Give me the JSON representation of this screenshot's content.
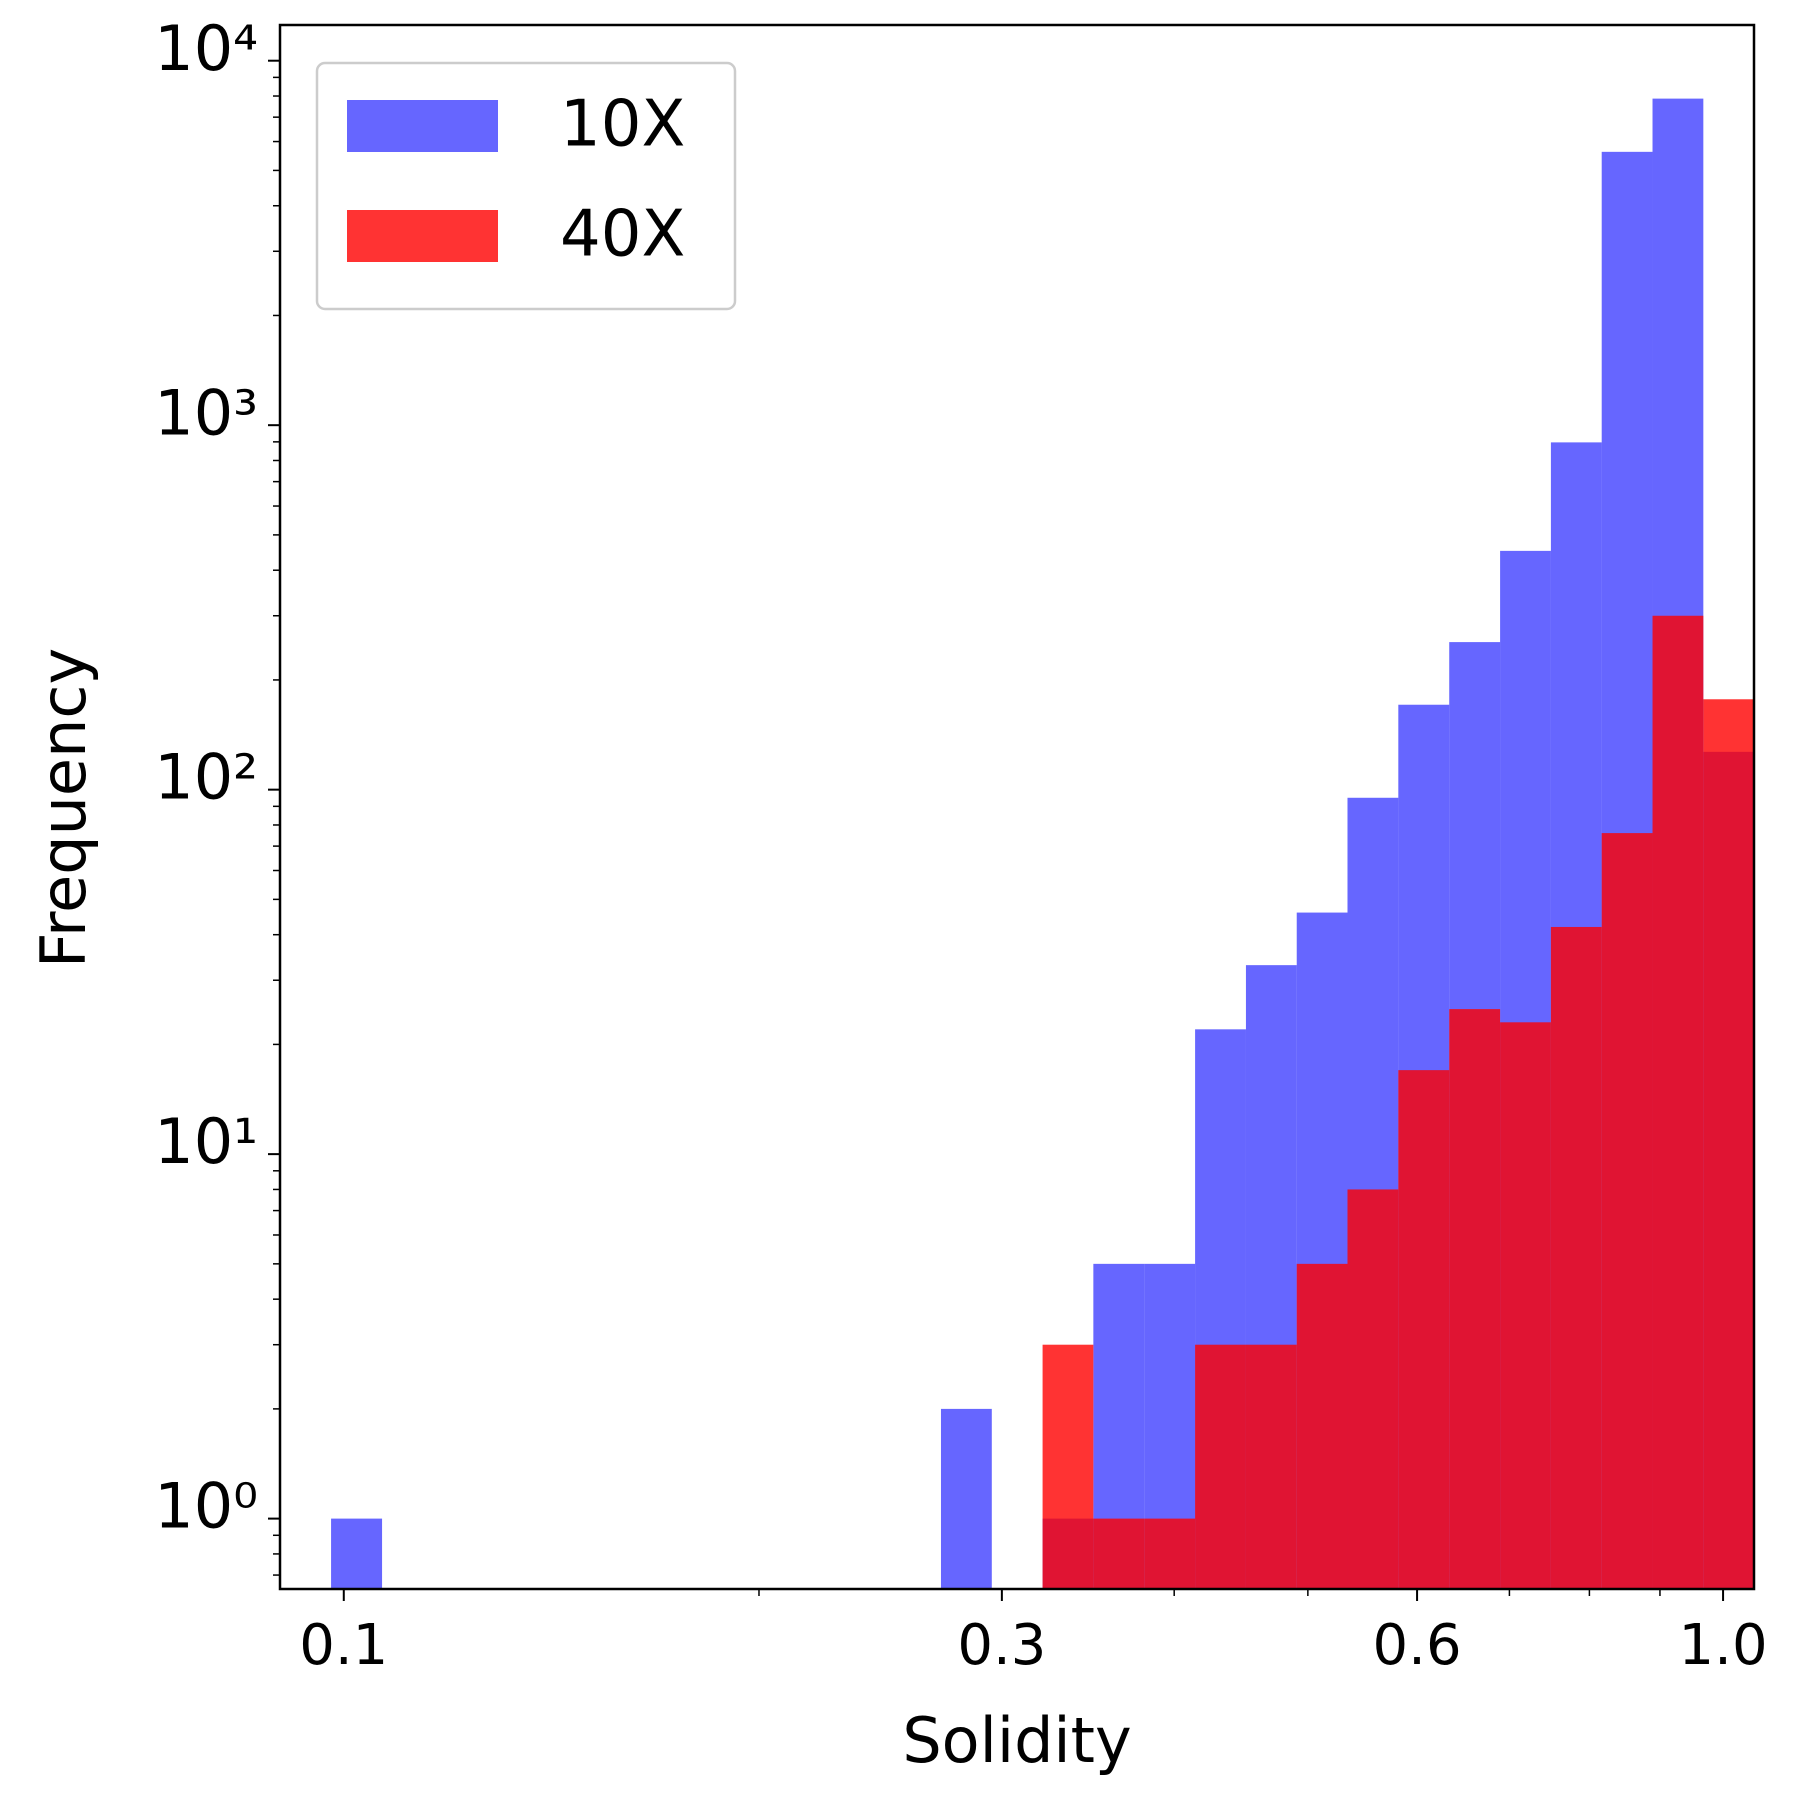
{
  "chart_data": {
    "type": "histogram",
    "xlabel": "Solidity",
    "ylabel": "Frequency",
    "bins": [
      0.0979,
      0.1066,
      0.116,
      0.1263,
      0.1374,
      0.1496,
      0.1628,
      0.1773,
      0.193,
      0.2101,
      0.2287,
      0.2489,
      0.271,
      0.295,
      0.3211,
      0.3495,
      0.3805,
      0.4142,
      0.4509,
      0.4908,
      0.5342,
      0.5815,
      0.6331,
      0.6892,
      0.7502,
      0.8166,
      0.8889,
      0.9676,
      1.053
    ],
    "series": [
      {
        "name": "10X",
        "color": "#0000ff",
        "opacity": 0.6,
        "values": [
          1,
          0,
          0,
          0,
          0,
          0,
          0,
          0,
          0,
          0,
          0,
          0,
          2,
          0,
          1,
          5,
          5,
          22,
          33,
          46,
          95,
          171,
          254,
          452,
          897,
          5623,
          7870,
          127
        ]
      },
      {
        "name": "40X",
        "color": "#ff0000",
        "opacity": 0.8,
        "values": [
          0,
          0,
          0,
          0,
          0,
          0,
          0,
          0,
          0,
          0,
          0,
          0,
          0,
          0,
          3,
          1,
          1,
          3,
          3,
          5,
          8,
          17,
          25,
          23,
          42,
          76,
          300,
          177
        ]
      }
    ],
    "xscale": "log",
    "yscale": "log",
    "xlim": [
      0.0899,
      1.053
    ],
    "ylim": [
      0.641,
      12530
    ],
    "xticks": [
      0.1,
      0.3,
      0.6,
      {
        "value": 1,
        "label": "1.0"
      }
    ],
    "xminorticks": [
      0.2,
      0.4,
      0.5,
      0.7,
      0.8,
      0.9
    ],
    "yticks": [
      {
        "value": 1,
        "label": "10⁰"
      },
      {
        "value": 10,
        "label": "10¹"
      },
      {
        "value": 100,
        "label": "10²"
      },
      {
        "value": 1000,
        "label": "10³"
      },
      {
        "value": 10000,
        "label": "10⁴"
      }
    ],
    "yminorticks": [
      0.7,
      0.8,
      0.9,
      2,
      3,
      4,
      5,
      6,
      7,
      8,
      9,
      20,
      30,
      40,
      50,
      60,
      70,
      80,
      90,
      200,
      300,
      400,
      500,
      600,
      700,
      800,
      900,
      2000,
      3000,
      4000,
      5000,
      6000,
      7000,
      8000,
      9000
    ],
    "legend": "upper left"
  }
}
